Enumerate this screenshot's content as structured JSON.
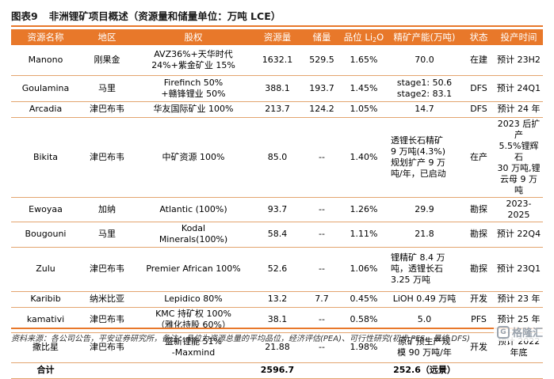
{
  "figure": {
    "label": "图表9",
    "title": "非洲锂矿项目概述（资源量和储量单位：万吨 LCE）"
  },
  "table": {
    "headers": [
      "资源名称",
      "地区",
      "股权",
      "资源量",
      "储量",
      "品位 Li",
      "2",
      "O",
      "精矿产能(万吨)",
      "状态",
      "投产时间"
    ],
    "rows": [
      {
        "name": "Manono",
        "region": "刚果金",
        "equity": [
          "AVZ36%+天华时代",
          "24%+紫金矿业 15%"
        ],
        "resource": "1632.1",
        "reserve": "529.5",
        "grade": "1.65%",
        "capacity": [
          "70.0"
        ],
        "status": "在建",
        "start": [
          "预计 23H2"
        ]
      },
      {
        "name": "Goulamina",
        "region": "马里",
        "equity": [
          "Firefinch 50%",
          "+赣锋锂业 50%"
        ],
        "resource": "388.1",
        "reserve": "193.7",
        "grade": "1.45%",
        "capacity": [
          "stage1: 50.6",
          "stage2: 83.1"
        ],
        "status": "DFS",
        "start": [
          "预计 24Q1"
        ]
      },
      {
        "name": "Arcadia",
        "region": "津巴布韦",
        "equity": [
          "华友国际矿业 100%"
        ],
        "resource": "213.7",
        "reserve": "124.2",
        "grade": "1.05%",
        "capacity": [
          "14.7"
        ],
        "status": "DFS",
        "start": [
          "预计 24 年"
        ]
      },
      {
        "name": "Bikita",
        "region": "津巴布韦",
        "equity": [
          "中矿资源 100%"
        ],
        "resource": "85.0",
        "reserve": "--",
        "grade": "1.40%",
        "capacity": [
          "透锂长石精矿",
          "9 万吨(4.3%)",
          "规划扩产 9 万",
          "吨/年，已启动"
        ],
        "status": "在产",
        "start": [
          "2023 后扩产",
          "5.5%锂辉石",
          "30 万吨,锂",
          "云母 9 万吨"
        ]
      },
      {
        "name": "Ewoyaa",
        "region": "加纳",
        "equity": [
          "Atlantic (100%)"
        ],
        "resource": "93.7",
        "reserve": "--",
        "grade": "1.26%",
        "capacity": [
          "29.9"
        ],
        "status": "勘探",
        "start": [
          "2023-2025"
        ]
      },
      {
        "name": "Bougouni",
        "region": "马里",
        "equity": [
          "Kodal",
          "Minerals(100%)"
        ],
        "resource": "58.4",
        "reserve": "--",
        "grade": "1.11%",
        "capacity": [
          "21.8"
        ],
        "status": "勘探",
        "start": [
          "预计 22Q4"
        ]
      },
      {
        "name": "Zulu",
        "region": "津巴布韦",
        "equity": [
          "Premier African 100%"
        ],
        "resource": "52.6",
        "reserve": "--",
        "grade": "1.06%",
        "capacity": [
          "锂精矿 8.4 万",
          "吨，透锂长石",
          "3.25 万吨"
        ],
        "status": "勘探",
        "start": [
          "预计 23Q1"
        ]
      },
      {
        "name": "Karibib",
        "region": "纳米比亚",
        "equity": [
          "Lepidico 80%"
        ],
        "resource": "13.2",
        "reserve": "7.7",
        "grade": "0.45%",
        "capacity": [
          "LiOH 0.49 万吨"
        ],
        "status": "开发",
        "start": [
          "预计 23 年"
        ]
      },
      {
        "name": "kamativi",
        "region": "津巴布韦",
        "equity": [
          "KMC 持矿权 100%",
          "（雅化持股 60%）"
        ],
        "resource": "38.1",
        "reserve": "--",
        "grade": "0.58%",
        "capacity": [
          "5.0"
        ],
        "status": "PFS",
        "start": [
          "预计 25 年"
        ]
      },
      {
        "name": "撒比星",
        "region": "津巴布韦",
        "equity": [
          "盛新锂能 51%",
          "-Maxmind"
        ],
        "resource": "21.88",
        "reserve": "--",
        "grade": "1.98%",
        "capacity": [
          "原矿预生产规",
          "模 90 万吨/年"
        ],
        "status": "开发",
        "start": [
          "预计 2022",
          "年底"
        ]
      }
    ],
    "total": {
      "label": "合计",
      "resource": "2596.7",
      "capacity": "252.6（远景）"
    }
  },
  "source": "资料来源：各公司公告，平安证券研究所，备注：品位为资源总量的平均品位，经济评估(PEA)、可行性研究(初步 PFS、最终 DFS)",
  "watermark": {
    "icon": "G",
    "text": "格隆汇"
  },
  "colors": {
    "accent": "#e8782a",
    "header_text": "#ffffff",
    "row_rule": "#e3a46f"
  }
}
